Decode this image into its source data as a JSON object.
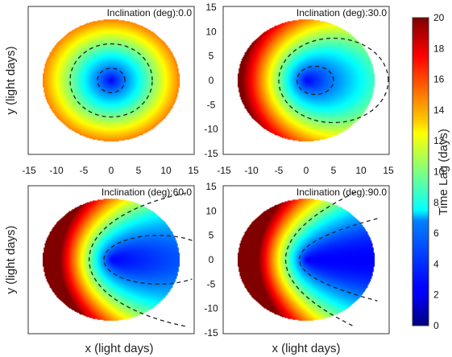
{
  "chart_data": {
    "type": "heatmap",
    "description_free": true,
    "colormap": "jet",
    "color_range": [
      0,
      20
    ],
    "colorbar": {
      "label": "Time Lag (days)",
      "ticks": [
        "0",
        "2",
        "4",
        "6",
        "8",
        "10",
        "12",
        "14",
        "16",
        "18",
        "20"
      ]
    },
    "xlabel": "x (light days)",
    "ylabel": "y (light days)",
    "xlim": [
      -15,
      15
    ],
    "ylim": [
      -15,
      15
    ],
    "disk_radius": 12.5,
    "x_ticks": [
      "-15",
      "-10",
      "-5",
      "0",
      "5",
      "10",
      "15"
    ],
    "y_ticks": [
      "15",
      "10",
      "5",
      "0",
      "-5",
      "-10",
      "-15"
    ],
    "contour_levels": [
      5,
      10
    ],
    "panels": [
      {
        "title": "Inclination (deg):0.0",
        "inclination": 0
      },
      {
        "title": "Inclination (deg):30.0",
        "inclination": 30
      },
      {
        "title": "Inclination (deg):60.0",
        "inclination": 60
      },
      {
        "title": "Inclination (deg):90.0",
        "inclination": 90
      }
    ]
  }
}
